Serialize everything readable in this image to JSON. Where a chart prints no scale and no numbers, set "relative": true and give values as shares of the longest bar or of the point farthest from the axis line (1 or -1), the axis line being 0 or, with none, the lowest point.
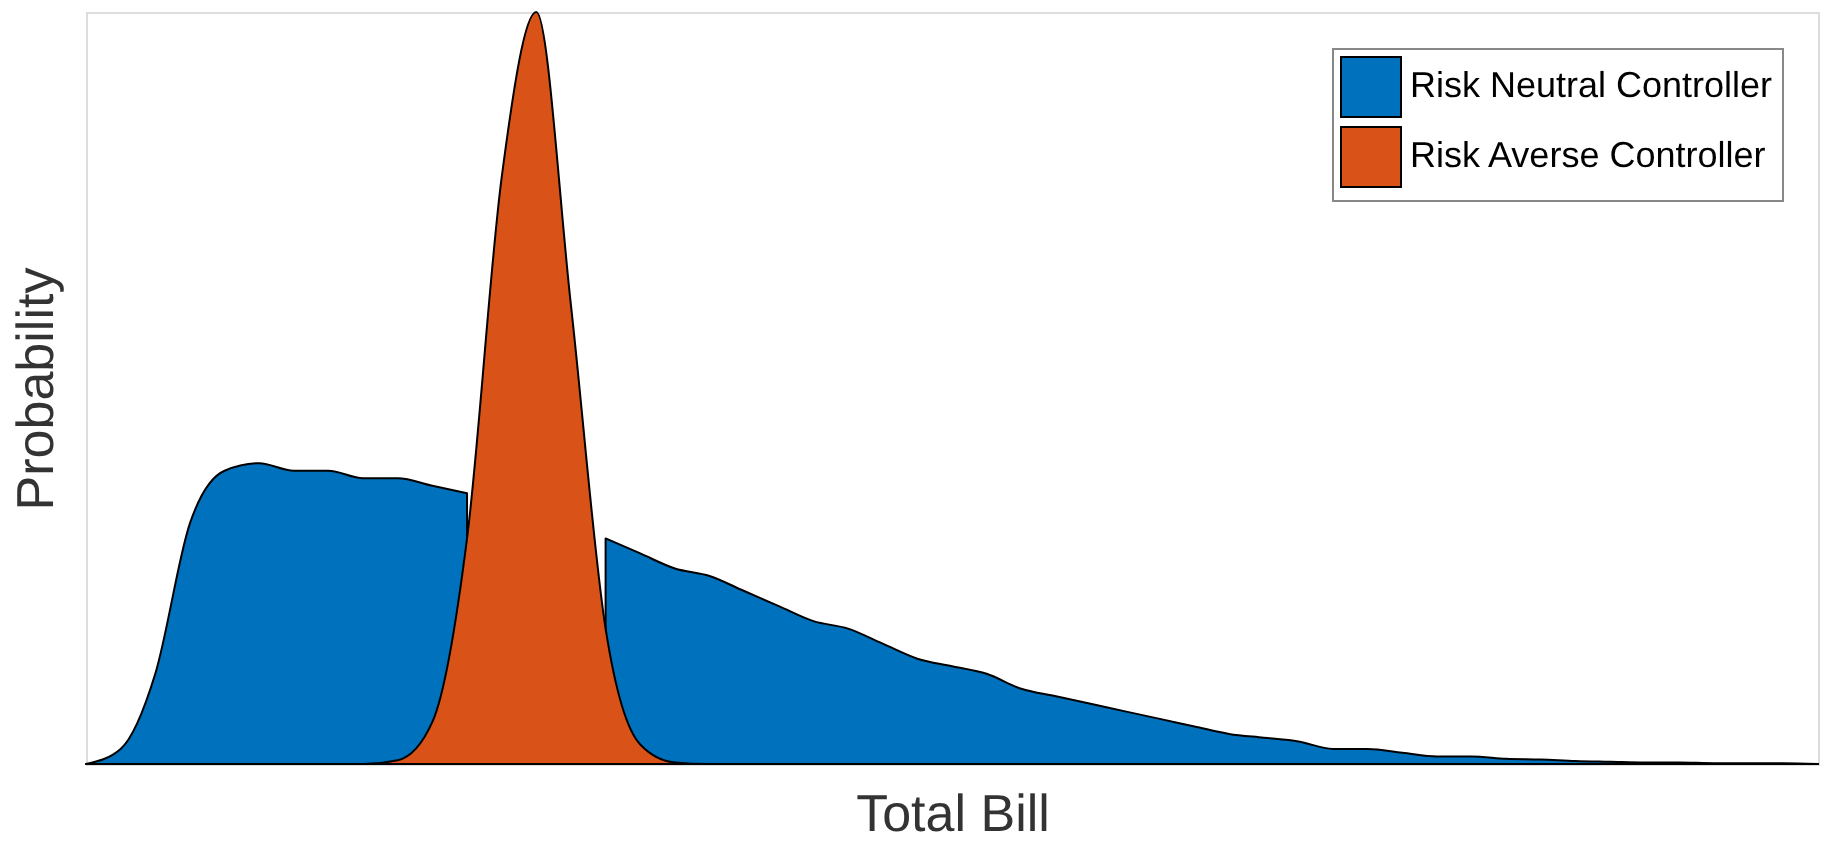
{
  "chart_data": {
    "type": "area",
    "relative": true,
    "xlabel": "Total Bill",
    "ylabel": "Probability",
    "legend": "top right",
    "grid": false,
    "tick_labels": false,
    "categories": [
      null,
      null,
      null,
      null,
      null,
      null,
      null,
      null,
      null,
      null,
      null,
      null,
      null,
      null,
      null,
      null,
      null,
      null,
      null,
      null,
      null,
      null,
      null,
      null,
      null,
      null,
      null,
      null,
      null,
      null,
      null,
      null,
      null,
      null,
      null,
      null,
      null,
      null,
      null,
      null,
      null,
      null,
      null,
      null,
      null,
      null,
      null,
      null,
      null,
      null,
      null
    ],
    "series": [
      {
        "name": "Risk Neutral Controller",
        "color": "#0072bd",
        "values": [
          0,
          0.02,
          0.12,
          0.32,
          0.39,
          0.4,
          0.39,
          0.39,
          0.38,
          0.38,
          0.37,
          0.36,
          null,
          null,
          null,
          0.3,
          0.28,
          0.26,
          0.25,
          0.23,
          0.21,
          0.19,
          0.18,
          0.16,
          0.14,
          0.13,
          0.12,
          0.1,
          0.09,
          0.08,
          0.07,
          0.06,
          0.05,
          0.04,
          0.035,
          0.03,
          0.02,
          0.02,
          0.015,
          0.01,
          0.01,
          0.007,
          0.006,
          0.004,
          0.003,
          0.002,
          0.002,
          0.001,
          0.001,
          0.001,
          0
        ]
      },
      {
        "name": "Risk Averse Controller",
        "color": "#d95319",
        "values": [
          0,
          0,
          0,
          0,
          0,
          0,
          0,
          0,
          0,
          0.005,
          0.056,
          0.3,
          0.78,
          1,
          0.61,
          0.18,
          0.026,
          0.002,
          0,
          0,
          0,
          0,
          0,
          0,
          0,
          0,
          0,
          0,
          0,
          0,
          0,
          0,
          0,
          0,
          0,
          0,
          0,
          0,
          0,
          0,
          0,
          0,
          0,
          0,
          0,
          0,
          0,
          0,
          0,
          0,
          0
        ]
      }
    ]
  }
}
